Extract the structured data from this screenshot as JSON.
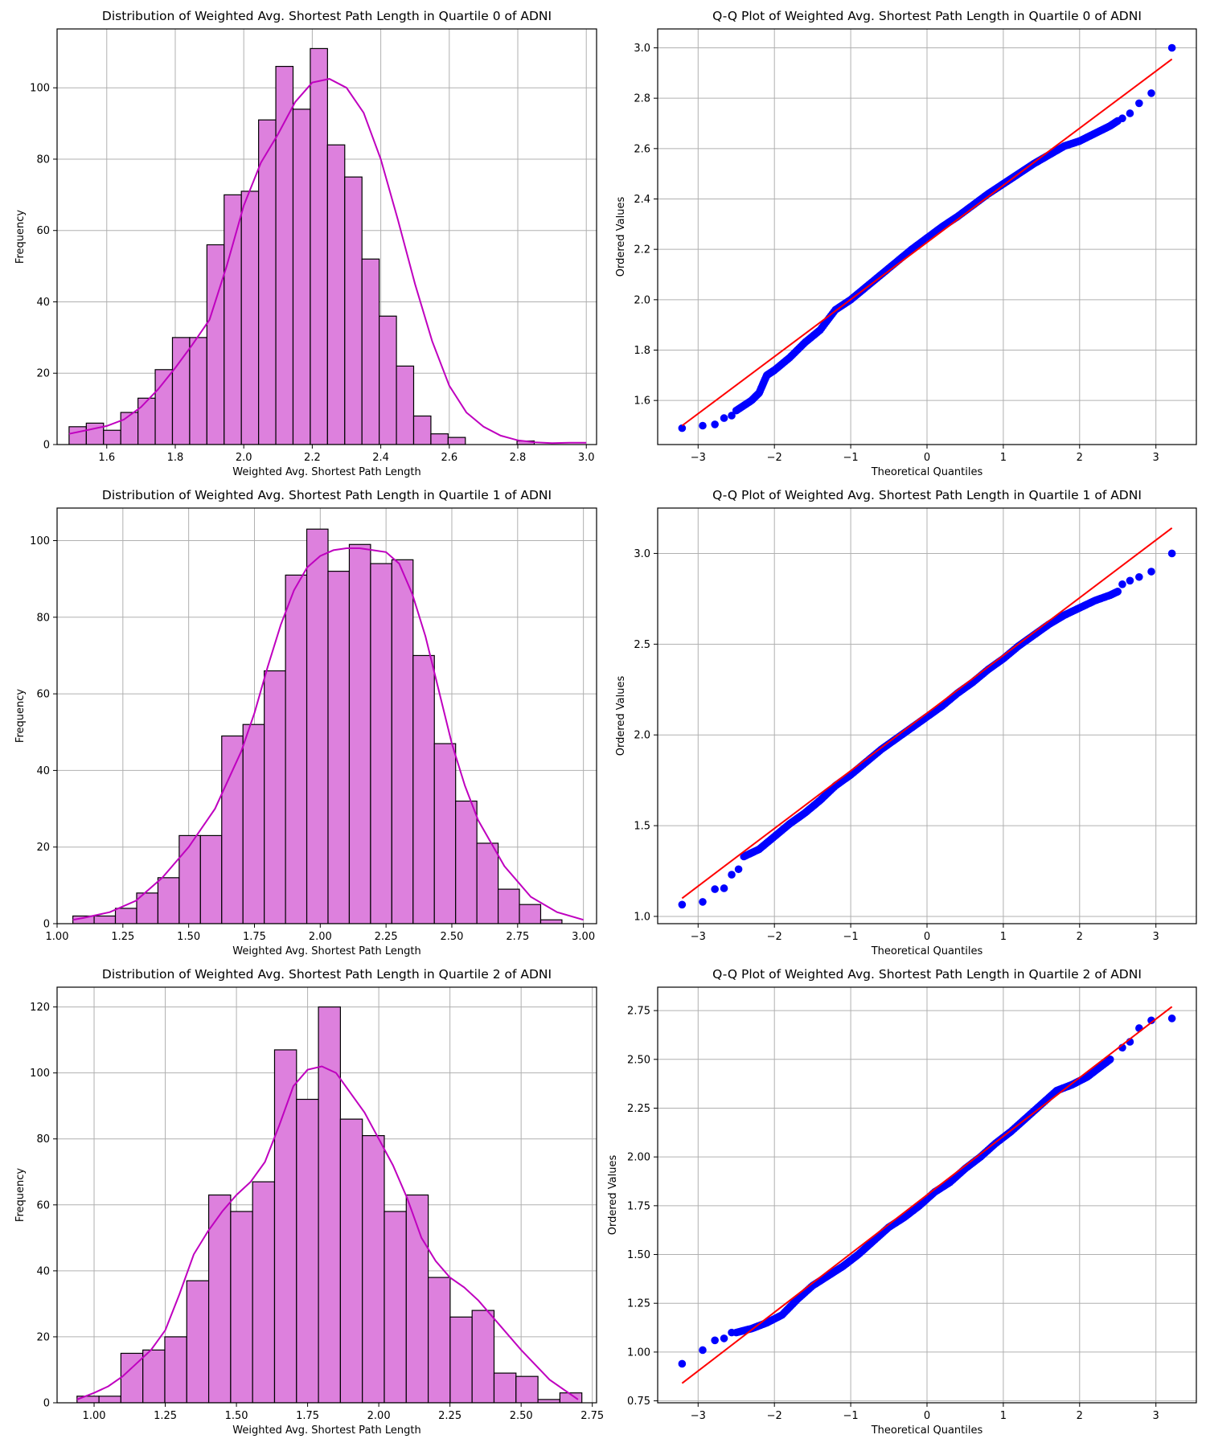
{
  "colors": {
    "hist_fill": "#dd80dd",
    "hist_edge": "#000000",
    "kde_line": "#bf00bf",
    "qq_points": "#0000ff",
    "qq_line": "#ff0000",
    "grid": "#b0b0b0"
  },
  "chart_data": [
    {
      "type": "bar",
      "title": "Distribution of Weighted Avg. Shortest Path Length in Quartile 0 of ADNI",
      "xlabel": "Weighted Avg. Shortest Path Length",
      "ylabel": "Frequency",
      "xlim": [
        1.455,
        3.03
      ],
      "ylim": [
        0,
        116.5
      ],
      "xticks": [
        1.6,
        1.8,
        2.0,
        2.2,
        2.4,
        2.6,
        2.8,
        3.0
      ],
      "xtick_labels": [
        "1.6",
        "1.8",
        "2.0",
        "2.2",
        "2.4",
        "2.6",
        "2.8",
        "3.0"
      ],
      "yticks": [
        0,
        20,
        40,
        60,
        80,
        100
      ],
      "ytick_labels": [
        "0",
        "20",
        "40",
        "60",
        "80",
        "100"
      ],
      "grid": true,
      "bin_start": 1.49,
      "bin_width": 0.0503,
      "values": [
        5,
        6,
        4,
        9,
        13,
        21,
        30,
        30,
        56,
        70,
        71,
        91,
        106,
        94,
        111,
        84,
        75,
        52,
        36,
        22,
        8,
        3,
        2,
        0,
        0,
        0,
        1
      ],
      "kde": {
        "x": [
          1.49,
          1.55,
          1.6,
          1.65,
          1.7,
          1.75,
          1.8,
          1.85,
          1.9,
          1.95,
          2.0,
          2.05,
          2.1,
          2.15,
          2.2,
          2.25,
          2.3,
          2.35,
          2.4,
          2.45,
          2.5,
          2.55,
          2.6,
          2.65,
          2.7,
          2.75,
          2.8,
          2.85,
          2.9,
          2.95,
          3.0
        ],
        "y": [
          3,
          4.2,
          5.2,
          7,
          10.5,
          15.5,
          21.5,
          28,
          35,
          50,
          67,
          79,
          87,
          96,
          101.5,
          102.5,
          100,
          93,
          80,
          63,
          45,
          29,
          16.5,
          9,
          5,
          2.5,
          1.2,
          0.6,
          0.4,
          0.5,
          0.5
        ]
      }
    },
    {
      "type": "scatter",
      "title": "Q-Q Plot of Weighted Avg. Shortest Path Length in Quartile 0 of ADNI",
      "xlabel": "Theoretical Quantiles",
      "ylabel": "Ordered Values",
      "xlim": [
        -3.53,
        3.53
      ],
      "ylim": [
        1.425,
        3.075
      ],
      "xticks": [
        -3,
        -2,
        -1,
        0,
        1,
        2,
        3
      ],
      "xtick_labels": [
        "−3",
        "−2",
        "−1",
        "0",
        "1",
        "2",
        "3"
      ],
      "yticks": [
        1.6,
        1.8,
        2.0,
        2.2,
        2.4,
        2.6,
        2.8,
        3.0
      ],
      "ytick_labels": [
        "1.6",
        "1.8",
        "2.0",
        "2.2",
        "2.4",
        "2.6",
        "2.8",
        "3.0"
      ],
      "grid": true,
      "fit_line": {
        "x": [
          -3.21,
          3.21
        ],
        "y": [
          1.5,
          2.955
        ]
      },
      "curve": {
        "x": [
          -2.5,
          -2.3,
          -2.2,
          -2.1,
          -2.0,
          -1.8,
          -1.6,
          -1.4,
          -1.2,
          -1.0,
          -0.8,
          -0.6,
          -0.4,
          -0.2,
          0.0,
          0.2,
          0.4,
          0.6,
          0.8,
          1.0,
          1.2,
          1.4,
          1.6,
          1.8,
          2.0,
          2.2,
          2.4,
          2.5
        ],
        "y": [
          1.56,
          1.6,
          1.63,
          1.7,
          1.72,
          1.77,
          1.83,
          1.88,
          1.96,
          2.0,
          2.05,
          2.1,
          2.15,
          2.2,
          2.245,
          2.29,
          2.33,
          2.375,
          2.42,
          2.46,
          2.5,
          2.54,
          2.575,
          2.61,
          2.63,
          2.66,
          2.69,
          2.71
        ]
      },
      "outliers": {
        "x": [
          -3.21,
          -2.94,
          -2.78,
          -2.66,
          -2.56,
          2.56,
          2.66,
          2.78,
          2.94,
          3.21
        ],
        "y": [
          1.49,
          1.5,
          1.505,
          1.53,
          1.54,
          2.72,
          2.74,
          2.78,
          2.82,
          3.0
        ]
      }
    },
    {
      "type": "bar",
      "title": "Distribution of Weighted Avg. Shortest Path Length in Quartile 1 of ADNI",
      "xlabel": "Weighted Avg. Shortest Path Length",
      "ylabel": "Frequency",
      "xlim": [
        1.0,
        3.05
      ],
      "ylim": [
        0,
        108.5
      ],
      "xticks": [
        1.0,
        1.25,
        1.5,
        1.75,
        2.0,
        2.25,
        2.5,
        2.75,
        3.0
      ],
      "xtick_labels": [
        "1.00",
        "1.25",
        "1.50",
        "1.75",
        "2.00",
        "2.25",
        "2.50",
        "2.75",
        "3.00"
      ],
      "yticks": [
        0,
        20,
        40,
        60,
        80,
        100
      ],
      "ytick_labels": [
        "0",
        "20",
        "40",
        "60",
        "80",
        "100"
      ],
      "grid": true,
      "bin_start": 1.06,
      "bin_width": 0.0808,
      "values": [
        2,
        2,
        4,
        8,
        12,
        23,
        23,
        49,
        52,
        66,
        91,
        103,
        92,
        99,
        94,
        95,
        70,
        47,
        32,
        21,
        9,
        5,
        1
      ],
      "kde": {
        "x": [
          1.06,
          1.1,
          1.2,
          1.3,
          1.4,
          1.5,
          1.6,
          1.7,
          1.75,
          1.8,
          1.85,
          1.9,
          1.95,
          2.0,
          2.05,
          2.1,
          2.15,
          2.2,
          2.25,
          2.3,
          2.35,
          2.4,
          2.45,
          2.5,
          2.55,
          2.6,
          2.7,
          2.8,
          2.9,
          3.0
        ],
        "y": [
          1,
          1.5,
          3,
          6,
          12,
          20,
          30,
          45,
          55,
          67,
          78,
          87,
          93,
          96,
          97.5,
          98,
          98,
          97.5,
          97,
          94,
          86,
          75,
          61,
          47,
          36,
          27,
          15,
          7,
          3,
          1
        ]
      }
    },
    {
      "type": "scatter",
      "title": "Q-Q Plot of Weighted Avg. Shortest Path Length in Quartile 1 of ADNI",
      "xlabel": "Theoretical Quantiles",
      "ylabel": "Ordered Values",
      "xlim": [
        -3.53,
        3.53
      ],
      "ylim": [
        0.96,
        3.25
      ],
      "xticks": [
        -3,
        -2,
        -1,
        0,
        1,
        2,
        3
      ],
      "xtick_labels": [
        "−3",
        "−2",
        "−1",
        "0",
        "1",
        "2",
        "3"
      ],
      "yticks": [
        1.0,
        1.5,
        2.0,
        2.5,
        3.0
      ],
      "ytick_labels": [
        "1.0",
        "1.5",
        "2.0",
        "2.5",
        "3.0"
      ],
      "grid": true,
      "fit_line": {
        "x": [
          -3.21,
          3.21
        ],
        "y": [
          1.1,
          3.14
        ]
      },
      "curve": {
        "x": [
          -2.4,
          -2.2,
          -2.0,
          -1.8,
          -1.6,
          -1.4,
          -1.2,
          -1.0,
          -0.8,
          -0.6,
          -0.4,
          -0.2,
          0.0,
          0.2,
          0.4,
          0.6,
          0.8,
          1.0,
          1.2,
          1.4,
          1.6,
          1.8,
          2.0,
          2.2,
          2.4,
          2.5
        ],
        "y": [
          1.33,
          1.37,
          1.44,
          1.51,
          1.57,
          1.64,
          1.72,
          1.78,
          1.85,
          1.92,
          1.98,
          2.04,
          2.1,
          2.16,
          2.23,
          2.29,
          2.36,
          2.42,
          2.49,
          2.55,
          2.61,
          2.66,
          2.7,
          2.74,
          2.77,
          2.79
        ]
      },
      "outliers": {
        "x": [
          -3.21,
          -2.94,
          -2.78,
          -2.66,
          -2.56,
          -2.47,
          2.56,
          2.66,
          2.78,
          2.94,
          3.21
        ],
        "y": [
          1.065,
          1.08,
          1.15,
          1.155,
          1.23,
          1.26,
          2.83,
          2.85,
          2.87,
          2.9,
          3.0
        ]
      }
    },
    {
      "type": "bar",
      "title": "Distribution of Weighted Avg. Shortest Path Length in Quartile 2 of ADNI",
      "xlabel": "Weighted Avg. Shortest Path Length",
      "ylabel": "Frequency",
      "xlim": [
        0.87,
        2.765
      ],
      "ylim": [
        0,
        126
      ],
      "xticks": [
        1.0,
        1.25,
        1.5,
        1.75,
        2.0,
        2.25,
        2.5,
        2.75
      ],
      "xtick_labels": [
        "1.00",
        "1.25",
        "1.50",
        "1.75",
        "2.00",
        "2.25",
        "2.50",
        "2.75"
      ],
      "yticks": [
        0,
        20,
        40,
        60,
        80,
        100,
        120
      ],
      "ytick_labels": [
        "0",
        "20",
        "40",
        "60",
        "80",
        "100",
        "120"
      ],
      "grid": true,
      "bin_start": 0.94,
      "bin_width": 0.0771,
      "values": [
        2,
        2,
        15,
        16,
        20,
        37,
        63,
        58,
        67,
        107,
        92,
        120,
        86,
        81,
        58,
        63,
        38,
        26,
        28,
        9,
        8,
        1,
        3
      ],
      "kde": {
        "x": [
          0.94,
          1.0,
          1.05,
          1.1,
          1.15,
          1.2,
          1.25,
          1.3,
          1.35,
          1.4,
          1.45,
          1.5,
          1.55,
          1.6,
          1.65,
          1.7,
          1.75,
          1.8,
          1.85,
          1.9,
          1.95,
          2.0,
          2.05,
          2.1,
          2.15,
          2.2,
          2.25,
          2.3,
          2.35,
          2.4,
          2.5,
          2.6,
          2.7
        ],
        "y": [
          1,
          3,
          5,
          8,
          12,
          16,
          22,
          33,
          45,
          52,
          58,
          63,
          67,
          73,
          84,
          96,
          101,
          102,
          100,
          94,
          88,
          80,
          72,
          62,
          50,
          43,
          38,
          35,
          31,
          26,
          16,
          7,
          1
        ]
      }
    },
    {
      "type": "scatter",
      "title": "Q-Q Plot of Weighted Avg. Shortest Path Length in Quartile 2 of ADNI",
      "xlabel": "Theoretical Quantiles",
      "ylabel": "Ordered Values",
      "xlim": [
        -3.53,
        3.53
      ],
      "ylim": [
        0.74,
        2.87
      ],
      "xticks": [
        -3,
        -2,
        -1,
        0,
        1,
        2,
        3
      ],
      "xtick_labels": [
        "−3",
        "−2",
        "−1",
        "0",
        "1",
        "2",
        "3"
      ],
      "yticks": [
        0.75,
        1.0,
        1.25,
        1.5,
        1.75,
        2.0,
        2.25,
        2.5,
        2.75
      ],
      "ytick_labels": [
        "0.75",
        "1.00",
        "1.25",
        "1.50",
        "1.75",
        "2.00",
        "2.25",
        "2.50",
        "2.75"
      ],
      "grid": true,
      "fit_line": {
        "x": [
          -3.21,
          3.21
        ],
        "y": [
          0.84,
          2.77
        ]
      },
      "curve": {
        "x": [
          -2.5,
          -2.3,
          -2.1,
          -1.9,
          -1.7,
          -1.5,
          -1.3,
          -1.1,
          -0.9,
          -0.7,
          -0.5,
          -0.3,
          -0.1,
          0.1,
          0.3,
          0.5,
          0.7,
          0.9,
          1.1,
          1.3,
          1.5,
          1.7,
          1.9,
          2.1,
          2.3,
          2.4
        ],
        "y": [
          1.1,
          1.12,
          1.15,
          1.19,
          1.27,
          1.34,
          1.39,
          1.44,
          1.5,
          1.57,
          1.64,
          1.69,
          1.75,
          1.82,
          1.87,
          1.94,
          2.0,
          2.07,
          2.13,
          2.2,
          2.27,
          2.34,
          2.37,
          2.41,
          2.47,
          2.5
        ]
      },
      "outliers": {
        "x": [
          -3.21,
          -2.94,
          -2.78,
          -2.66,
          -2.56,
          2.56,
          2.66,
          2.78,
          2.94,
          3.21
        ],
        "y": [
          0.94,
          1.01,
          1.06,
          1.07,
          1.1,
          2.56,
          2.59,
          2.66,
          2.7,
          2.71
        ]
      }
    }
  ]
}
